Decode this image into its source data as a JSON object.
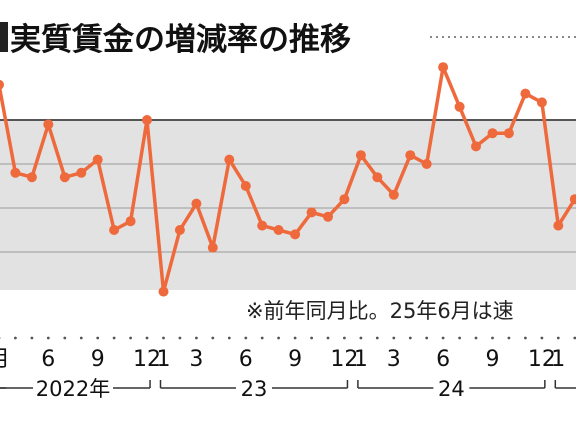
{
  "chart_data": {
    "type": "line",
    "title": "実質賃金の増減率の推移",
    "note": "※前年同月比。25年6月は速",
    "baseline": 0,
    "series": [
      {
        "values": [
          0.8,
          -1.2,
          -1.3,
          -0.1,
          -1.3,
          -1.2,
          -0.9,
          -2.5,
          -2.3,
          0.0,
          -3.9,
          -2.5,
          -1.9,
          -2.9,
          -0.9,
          -1.5,
          -2.4,
          -2.5,
          -2.6,
          -2.1,
          -2.2,
          -1.8,
          -0.8,
          -1.3,
          -1.7,
          -0.8,
          -1.0,
          1.2,
          0.3,
          -0.6,
          -0.3,
          -0.3,
          0.6,
          0.4,
          -2.4,
          -1.8
        ]
      }
    ],
    "x_tick_labels": [
      {
        "label": "月",
        "i": 0
      },
      {
        "label": "6",
        "i": 3
      },
      {
        "label": "9",
        "i": 6
      },
      {
        "label": "12",
        "i": 9
      },
      {
        "label": "1",
        "i": 10
      },
      {
        "label": "3",
        "i": 12
      },
      {
        "label": "6",
        "i": 15
      },
      {
        "label": "9",
        "i": 18
      },
      {
        "label": "12",
        "i": 21
      },
      {
        "label": "1",
        "i": 22
      },
      {
        "label": "3",
        "i": 24
      },
      {
        "label": "6",
        "i": 27
      },
      {
        "label": "9",
        "i": 30
      },
      {
        "label": "12",
        "i": 33
      },
      {
        "label": "1",
        "i": 34
      }
    ],
    "year_labels": [
      {
        "label": "2022年",
        "from": 0,
        "to": 9
      },
      {
        "label": "23",
        "from": 10,
        "to": 21
      },
      {
        "label": "24",
        "from": 22,
        "to": 33
      }
    ],
    "colors": {
      "line": "#ee6a3c",
      "band": "#e2e2e2",
      "band_border": "#555555",
      "grid": "#999999"
    }
  }
}
